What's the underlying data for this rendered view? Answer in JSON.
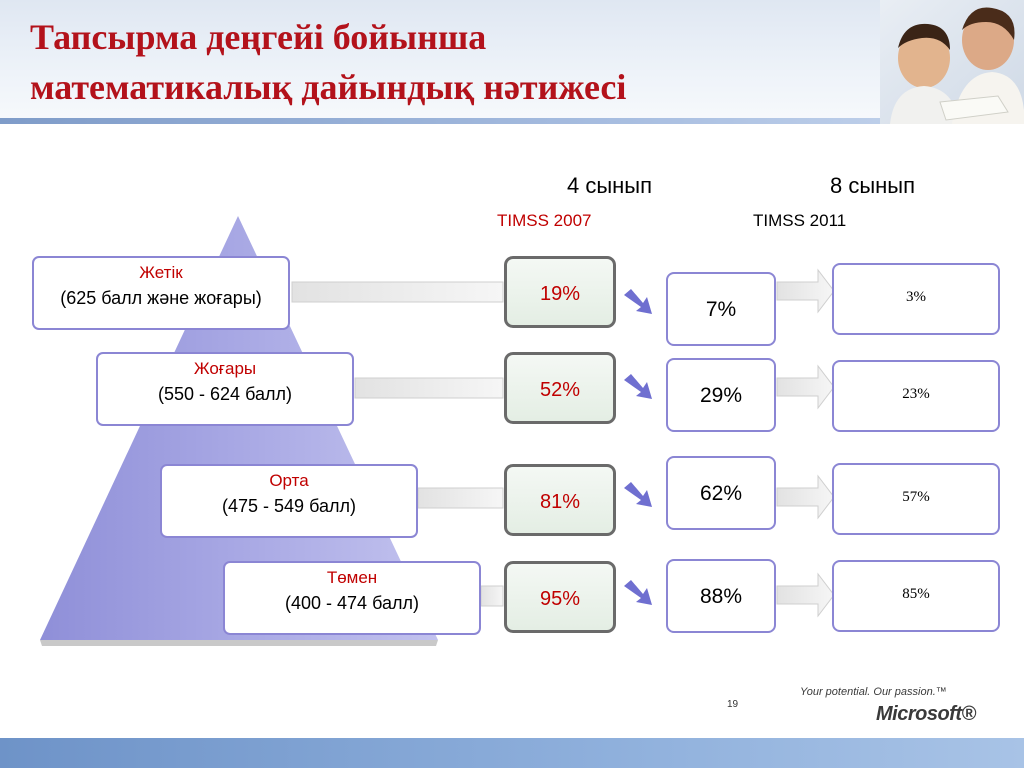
{
  "slide": {
    "title_line1": "Тапсырма деңгейі бойынша",
    "title_line2": "математикалық дайындық нәтижесі",
    "page_number": "19"
  },
  "columns": {
    "grade4": "4 сынып",
    "grade8": "8 сынып",
    "timss2007": "TIMSS 2007",
    "timss2011": "TIMSS 2011"
  },
  "levels": [
    {
      "name": "Жетік",
      "range": "(625 балл және жоғары)",
      "timss2007": "19%",
      "grade4": "7%",
      "grade8": "3%"
    },
    {
      "name": "Жоғары",
      "range": "(550 - 624 балл)",
      "timss2007": "52%",
      "grade4": "29%",
      "grade8": "23%"
    },
    {
      "name": "Орта",
      "range": "(475 - 549 балл)",
      "timss2007": "81%",
      "grade4": "62%",
      "grade8": "57%"
    },
    {
      "name": "Төмен",
      "range": "(400 - 474 балл)",
      "timss2007": "95%",
      "grade4": "88%",
      "grade8": "85%"
    }
  ],
  "branding": {
    "slogan": "Your potential. Our passion.™",
    "logo": "Microsoft®"
  },
  "colors": {
    "title": "#b3121b",
    "level_label": "#c00000",
    "box_border": "#8b86d4",
    "pyramid": "#a4a4e0",
    "arrow": "#6f6fd0"
  },
  "images": {
    "header_photo": "children-studying-photo"
  }
}
